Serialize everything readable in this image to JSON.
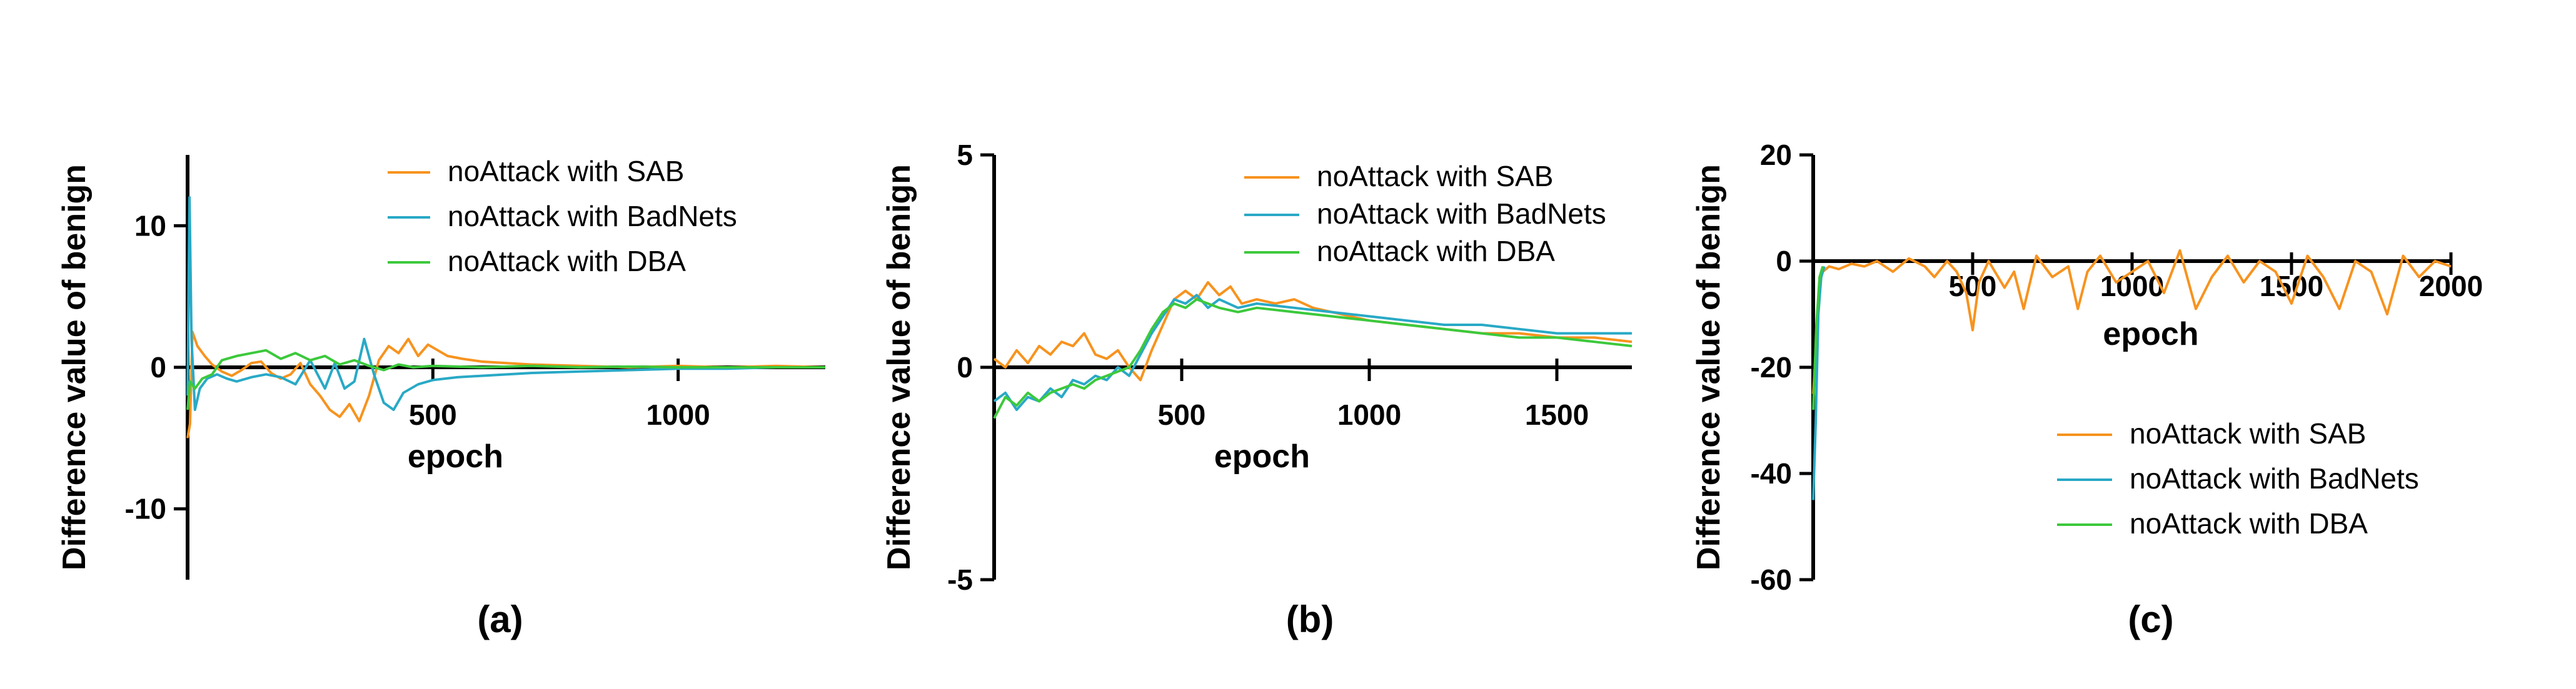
{
  "panels": [
    {
      "panel_label": "(a)",
      "chart_data": {
        "type": "line",
        "xlabel": "epoch",
        "ylabel": "Difference value of benign",
        "xlim": [
          0,
          1300
        ],
        "ylim": [
          -15,
          15
        ],
        "xticks": [
          500,
          1000
        ],
        "xtick_labels": [
          "500",
          "1000"
        ],
        "yticks": [
          10,
          0,
          -10
        ],
        "ytick_labels": [
          "10",
          "0",
          "-10"
        ],
        "grid": false,
        "legend": "top-right",
        "series": [
          {
            "name": "noAttack with SAB",
            "color": "#F7931E",
            "x": [
              0,
              5,
              10,
              20,
              35,
              50,
              70,
              90,
              110,
              130,
              150,
              170,
              190,
              210,
              230,
              250,
              270,
              290,
              310,
              330,
              350,
              370,
              390,
              410,
              430,
              450,
              470,
              490,
              510,
              530,
              560,
              600,
              650,
              700,
              800,
              900,
              1000,
              1100,
              1200,
              1300
            ],
            "y": [
              -5,
              -4,
              2.5,
              1.5,
              0.8,
              0.2,
              -0.3,
              -0.6,
              -0.2,
              0.3,
              0.4,
              -0.4,
              -0.8,
              -0.5,
              0.3,
              -1.2,
              -2.0,
              -3.0,
              -3.5,
              -2.6,
              -3.8,
              -2.0,
              0.5,
              1.5,
              1.0,
              2.0,
              0.8,
              1.6,
              1.2,
              0.8,
              0.6,
              0.4,
              0.3,
              0.2,
              0.1,
              0.0,
              0.1,
              0.0,
              0.1,
              0.0
            ]
          },
          {
            "name": "noAttack with BadNets",
            "color": "#29A9C6",
            "x": [
              0,
              4,
              8,
              15,
              25,
              40,
              60,
              80,
              100,
              130,
              160,
              190,
              220,
              250,
              280,
              300,
              320,
              340,
              360,
              380,
              400,
              420,
              440,
              470,
              500,
              550,
              600,
              700,
              800,
              900,
              1000,
              1100,
              1200,
              1300
            ],
            "y": [
              -2,
              12,
              2,
              -3,
              -1.5,
              -0.8,
              -0.5,
              -0.8,
              -1.0,
              -0.7,
              -0.5,
              -0.7,
              -1.2,
              0.5,
              -1.5,
              0.3,
              -1.5,
              -1.0,
              2.0,
              -0.5,
              -2.5,
              -3.0,
              -1.8,
              -1.2,
              -0.9,
              -0.7,
              -0.6,
              -0.4,
              -0.3,
              -0.2,
              -0.1,
              -0.1,
              0.0,
              0.0
            ]
          },
          {
            "name": "noAttack with DBA",
            "color": "#3CC93C",
            "x": [
              0,
              5,
              15,
              30,
              50,
              70,
              100,
              130,
              160,
              190,
              220,
              250,
              280,
              310,
              340,
              370,
              400,
              430,
              460,
              500,
              600,
              700,
              800,
              900,
              1000,
              1100,
              1200,
              1300
            ],
            "y": [
              -3,
              -1,
              -1.5,
              -0.8,
              -0.5,
              0.5,
              0.8,
              1.0,
              1.2,
              0.6,
              1.0,
              0.5,
              0.8,
              0.2,
              0.5,
              0.1,
              -0.2,
              0.2,
              0.0,
              0.1,
              0.0,
              0.1,
              0.0,
              0.05,
              0.0,
              0.0,
              0.0,
              0.0
            ]
          }
        ]
      }
    },
    {
      "panel_label": "(b)",
      "chart_data": {
        "type": "line",
        "xlabel": "epoch",
        "ylabel": "Difference value of benign",
        "xlim": [
          0,
          1700
        ],
        "ylim": [
          -5,
          5
        ],
        "xticks": [
          500,
          1000,
          1500
        ],
        "xtick_labels": [
          "500",
          "1000",
          "1500"
        ],
        "yticks": [
          5,
          0,
          -5
        ],
        "ytick_labels": [
          "5",
          "0",
          "-5"
        ],
        "grid": false,
        "legend": "top-right",
        "series": [
          {
            "name": "noAttack with SAB",
            "color": "#F7931E",
            "x": [
              0,
              30,
              60,
              90,
              120,
              150,
              180,
              210,
              240,
              270,
              300,
              330,
              360,
              390,
              420,
              450,
              480,
              510,
              540,
              570,
              600,
              630,
              660,
              700,
              750,
              800,
              850,
              900,
              950,
              1000,
              1100,
              1200,
              1300,
              1400,
              1500,
              1600,
              1700
            ],
            "y": [
              0.2,
              0.0,
              0.4,
              0.1,
              0.5,
              0.3,
              0.6,
              0.5,
              0.8,
              0.3,
              0.2,
              0.4,
              0.0,
              -0.3,
              0.4,
              1.0,
              1.6,
              1.8,
              1.6,
              2.0,
              1.7,
              1.9,
              1.5,
              1.6,
              1.5,
              1.6,
              1.4,
              1.3,
              1.2,
              1.1,
              1.0,
              0.9,
              0.8,
              0.8,
              0.7,
              0.7,
              0.6
            ]
          },
          {
            "name": "noAttack with BadNets",
            "color": "#29A9C6",
            "x": [
              0,
              30,
              60,
              90,
              120,
              150,
              180,
              210,
              240,
              270,
              300,
              330,
              360,
              390,
              420,
              450,
              480,
              510,
              540,
              570,
              600,
              650,
              700,
              800,
              900,
              1000,
              1100,
              1200,
              1300,
              1400,
              1500,
              1600,
              1700
            ],
            "y": [
              -0.8,
              -0.6,
              -1.0,
              -0.7,
              -0.8,
              -0.5,
              -0.7,
              -0.3,
              -0.4,
              -0.2,
              -0.3,
              0.0,
              -0.2,
              0.3,
              0.8,
              1.2,
              1.6,
              1.5,
              1.7,
              1.4,
              1.6,
              1.4,
              1.5,
              1.4,
              1.3,
              1.2,
              1.1,
              1.0,
              1.0,
              0.9,
              0.8,
              0.8,
              0.8
            ]
          },
          {
            "name": "noAttack with DBA",
            "color": "#3CC93C",
            "x": [
              0,
              30,
              60,
              90,
              120,
              150,
              180,
              210,
              240,
              270,
              300,
              330,
              360,
              390,
              420,
              450,
              480,
              510,
              540,
              570,
              600,
              650,
              700,
              800,
              900,
              1000,
              1100,
              1200,
              1300,
              1400,
              1500,
              1600,
              1700
            ],
            "y": [
              -1.2,
              -0.7,
              -0.9,
              -0.6,
              -0.8,
              -0.6,
              -0.5,
              -0.4,
              -0.5,
              -0.3,
              -0.2,
              -0.1,
              0.0,
              0.4,
              0.9,
              1.3,
              1.5,
              1.4,
              1.6,
              1.5,
              1.4,
              1.3,
              1.4,
              1.3,
              1.2,
              1.1,
              1.0,
              0.9,
              0.8,
              0.7,
              0.7,
              0.6,
              0.5
            ]
          }
        ]
      }
    },
    {
      "panel_label": "(c)",
      "chart_data": {
        "type": "line",
        "xlabel": "epoch",
        "ylabel": "Difference value of benign",
        "xlim": [
          0,
          2000
        ],
        "ylim": [
          -60,
          20
        ],
        "xticks": [
          500,
          1000,
          1500,
          2000
        ],
        "xtick_labels": [
          "500",
          "1000",
          "1500",
          "2000"
        ],
        "yticks": [
          20,
          0,
          -20,
          -40,
          -60
        ],
        "ytick_labels": [
          "20",
          "0",
          "-20",
          "-40",
          "-60"
        ],
        "grid": false,
        "legend": "bottom-right",
        "series": [
          {
            "name": "noAttack with SAB",
            "color": "#F7931E",
            "x": [
              0,
              10,
              20,
              30,
              50,
              80,
              120,
              160,
              200,
              250,
              300,
              350,
              380,
              420,
              450,
              480,
              500,
              520,
              550,
              600,
              630,
              660,
              700,
              750,
              800,
              830,
              860,
              900,
              950,
              1000,
              1050,
              1100,
              1150,
              1200,
              1250,
              1300,
              1350,
              1400,
              1450,
              1500,
              1550,
              1600,
              1650,
              1700,
              1750,
              1800,
              1850,
              1900,
              1950,
              2000
            ],
            "y": [
              -25,
              -15,
              -4,
              -2,
              -1,
              -1.5,
              -0.5,
              -1,
              0,
              -2,
              0.5,
              -1,
              -3,
              0,
              -2,
              -6,
              -13,
              -4,
              0,
              -5,
              -2,
              -9,
              1,
              -3,
              -1,
              -9,
              -2,
              1,
              -4,
              -2,
              0,
              -6,
              2,
              -9,
              -3,
              1,
              -4,
              0,
              -2,
              -8,
              1,
              -3,
              -9,
              0,
              -2,
              -10,
              1,
              -3,
              0,
              -1
            ]
          },
          {
            "name": "noAttack with BadNets",
            "color": "#29A9C6",
            "x": [
              0,
              8,
              16,
              25,
              35
            ],
            "y": [
              -45,
              -30,
              -10,
              -3,
              -1
            ]
          },
          {
            "name": "noAttack with DBA",
            "color": "#3CC93C",
            "x": [
              0,
              10,
              20,
              30
            ],
            "y": [
              -28,
              -12,
              -3,
              -1
            ]
          }
        ]
      }
    }
  ]
}
